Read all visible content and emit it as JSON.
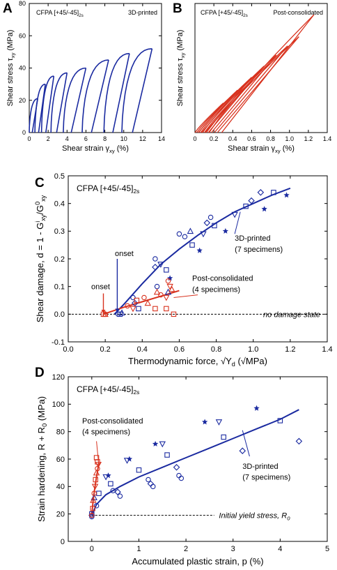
{
  "colors": {
    "blue": "#1a2aa0",
    "red": "#d8321e",
    "axis": "#000000"
  },
  "chart_data": [
    {
      "panel": "A",
      "type": "line",
      "annotation_main": "CFPA [+45/-45]",
      "annotation_sub": "2s",
      "corner_label": "3D-printed",
      "xlabel": "Shear strain γ",
      "xlabel_sub": "xy",
      "xlabel_unit": "(%)",
      "ylabel": "Shear stress τ",
      "ylabel_sub": "xy",
      "ylabel_unit": "(MPa)",
      "xlim": [
        0,
        14
      ],
      "ylim": [
        0,
        80
      ],
      "xticks": [
        0,
        2,
        4,
        6,
        8,
        10,
        12,
        14
      ],
      "yticks": [
        0,
        20,
        40,
        60,
        80
      ],
      "series_color": "blue",
      "cycles": [
        {
          "origin": 0.0,
          "peak": [
            0.9,
            21
          ]
        },
        {
          "origin": 0.6,
          "peak": [
            1.7,
            30
          ]
        },
        {
          "origin": 1.3,
          "peak": [
            2.6,
            35
          ]
        },
        {
          "origin": 2.3,
          "peak": [
            4.0,
            37
          ]
        },
        {
          "origin": 3.6,
          "peak": [
            6.0,
            40
          ]
        },
        {
          "origin": 5.6,
          "peak": [
            8.4,
            45
          ]
        },
        {
          "origin": 7.9,
          "peak": [
            10.6,
            49
          ]
        },
        {
          "origin": 9.8,
          "peak": [
            13.0,
            52
          ]
        }
      ]
    },
    {
      "panel": "B",
      "type": "line",
      "annotation_main": "CFPA [+45/-45]",
      "annotation_sub": "2s",
      "corner_label": "Post-consolidated",
      "xlabel": "Shear strain γ",
      "xlabel_sub": "xy",
      "xlabel_unit": "(%)",
      "ylabel": "Shear stress τ",
      "ylabel_sub": "xy",
      "ylabel_unit": "(MPa)",
      "xlim": [
        0,
        1.4
      ],
      "ylim": [
        0,
        70
      ],
      "xticks": [
        0,
        0.2,
        0.4,
        0.6,
        0.8,
        1.0,
        1.2,
        1.4
      ],
      "xtick_labels": [
        "0",
        "0.2",
        "0.4",
        "0.6",
        "0.8",
        "1.0",
        "1.2",
        "1.4"
      ],
      "yticks": [],
      "series_color": "red",
      "cycles": [
        {
          "origin": 0.0,
          "peak": [
            0.3,
            16
          ]
        },
        {
          "origin": 0.02,
          "peak": [
            0.45,
            23
          ]
        },
        {
          "origin": 0.04,
          "peak": [
            0.6,
            30
          ]
        },
        {
          "origin": 0.06,
          "peak": [
            0.73,
            36
          ]
        },
        {
          "origin": 0.08,
          "peak": [
            0.86,
            42
          ]
        },
        {
          "origin": 0.1,
          "peak": [
            0.98,
            47
          ]
        },
        {
          "origin": 0.12,
          "peak": [
            1.1,
            52
          ]
        },
        {
          "origin": 0.15,
          "peak": [
            1.26,
            64
          ]
        }
      ]
    },
    {
      "panel": "C",
      "type": "scatter",
      "annotation_main": "CFPA [+45/-45]",
      "annotation_sub": "2s",
      "xlabel": "Thermodynamic force, √Y",
      "xlabel_sub": "d",
      "xlabel_unit": "(√MPa)",
      "ylabel": "Shear damage, d = 1 - G",
      "ylabel_sup": "i",
      "ylabel_sub": "xy",
      "ylabel_mid": "/G",
      "ylabel_sup2": "0",
      "ylabel_sub2": "xy",
      "xlim": [
        0,
        1.4
      ],
      "ylim": [
        -0.1,
        0.5
      ],
      "xticks": [
        0,
        0.2,
        0.4,
        0.6,
        0.8,
        1.0,
        1.2,
        1.4
      ],
      "xtick_labels": [
        "0.0",
        "0.2",
        "0.4",
        "0.6",
        "0.8",
        "1.0",
        "1.2",
        "1.4"
      ],
      "yticks": [
        -0.1,
        0.0,
        0.1,
        0.2,
        0.3,
        0.4,
        0.5
      ],
      "ytick_labels": [
        "-0.1",
        "0.0",
        "0.1",
        "0.2",
        "0.3",
        "0.4",
        "0.5"
      ],
      "baseline_label": "no damage state",
      "onset_label": "onset",
      "onset_red_x": 0.19,
      "onset_blue_x": 0.265,
      "group_3d_label": "3D-printed",
      "group_3d_count": "(7 specimens)",
      "group_pc_label": "Post-consolidated",
      "group_pc_count": "(4 specimens)",
      "blue_fit": [
        [
          0.25,
          0.0
        ],
        [
          0.3,
          0.035
        ],
        [
          0.4,
          0.11
        ],
        [
          0.5,
          0.18
        ],
        [
          0.6,
          0.235
        ],
        [
          0.7,
          0.285
        ],
        [
          0.8,
          0.33
        ],
        [
          0.9,
          0.37
        ],
        [
          1.0,
          0.4
        ],
        [
          1.1,
          0.43
        ],
        [
          1.2,
          0.455
        ]
      ],
      "red_fit": [
        [
          0.19,
          0.0
        ],
        [
          0.3,
          0.025
        ],
        [
          0.4,
          0.045
        ],
        [
          0.5,
          0.065
        ],
        [
          0.6,
          0.085
        ]
      ],
      "blue_points": [
        {
          "m": "circle",
          "x": 0.27,
          "y": 0.0
        },
        {
          "m": "square",
          "x": 0.28,
          "y": 0.0
        },
        {
          "m": "tri",
          "x": 0.29,
          "y": 0.005
        },
        {
          "m": "circle",
          "x": 0.35,
          "y": 0.06
        },
        {
          "m": "square",
          "x": 0.38,
          "y": 0.02
        },
        {
          "m": "diamond",
          "x": 0.36,
          "y": 0.04
        },
        {
          "m": "circle",
          "x": 0.47,
          "y": 0.2
        },
        {
          "m": "tridown",
          "x": 0.5,
          "y": 0.18
        },
        {
          "m": "diamond",
          "x": 0.47,
          "y": 0.17
        },
        {
          "m": "square",
          "x": 0.53,
          "y": 0.16
        },
        {
          "m": "star",
          "x": 0.55,
          "y": 0.13
        },
        {
          "m": "circle",
          "x": 0.6,
          "y": 0.29
        },
        {
          "m": "tri",
          "x": 0.66,
          "y": 0.3
        },
        {
          "m": "circle",
          "x": 0.63,
          "y": 0.28
        },
        {
          "m": "square",
          "x": 0.67,
          "y": 0.25
        },
        {
          "m": "tridown",
          "x": 0.73,
          "y": 0.29
        },
        {
          "m": "diamond",
          "x": 0.75,
          "y": 0.33
        },
        {
          "m": "square",
          "x": 0.79,
          "y": 0.32
        },
        {
          "m": "star",
          "x": 0.71,
          "y": 0.23
        },
        {
          "m": "circle",
          "x": 0.77,
          "y": 0.35
        },
        {
          "m": "star",
          "x": 0.85,
          "y": 0.3
        },
        {
          "m": "tridown",
          "x": 0.9,
          "y": 0.36
        },
        {
          "m": "square",
          "x": 0.96,
          "y": 0.39
        },
        {
          "m": "diamond",
          "x": 0.99,
          "y": 0.41
        },
        {
          "m": "diamond",
          "x": 1.04,
          "y": 0.44
        },
        {
          "m": "star",
          "x": 1.06,
          "y": 0.38
        },
        {
          "m": "square",
          "x": 1.11,
          "y": 0.44
        },
        {
          "m": "star",
          "x": 1.18,
          "y": 0.43
        },
        {
          "m": "circle",
          "x": 0.48,
          "y": 0.1
        },
        {
          "m": "tri",
          "x": 0.54,
          "y": 0.08
        }
      ],
      "red_points": [
        {
          "m": "square",
          "x": 0.19,
          "y": 0.0
        },
        {
          "m": "circle",
          "x": 0.2,
          "y": 0.0
        },
        {
          "m": "tri",
          "x": 0.2,
          "y": 0.0
        },
        {
          "m": "circle",
          "x": 0.32,
          "y": 0.03
        },
        {
          "m": "tridown",
          "x": 0.35,
          "y": 0.02
        },
        {
          "m": "square",
          "x": 0.37,
          "y": 0.05
        },
        {
          "m": "circle",
          "x": 0.41,
          "y": 0.06
        },
        {
          "m": "tri",
          "x": 0.43,
          "y": 0.04
        },
        {
          "m": "tri",
          "x": 0.48,
          "y": 0.08
        },
        {
          "m": "circle",
          "x": 0.5,
          "y": 0.07
        },
        {
          "m": "square",
          "x": 0.47,
          "y": 0.02
        },
        {
          "m": "tridown",
          "x": 0.53,
          "y": 0.06
        },
        {
          "m": "circle",
          "x": 0.54,
          "y": 0.12
        },
        {
          "m": "tridown",
          "x": 0.55,
          "y": 0.1
        },
        {
          "m": "tri",
          "x": 0.56,
          "y": 0.09
        },
        {
          "m": "square",
          "x": 0.57,
          "y": 0.0
        },
        {
          "m": "square",
          "x": 0.53,
          "y": 0.02
        }
      ]
    },
    {
      "panel": "D",
      "type": "scatter",
      "annotation_main": "CFPA [+45/-45]",
      "annotation_sub": "2s",
      "xlabel": "Accumulated plastic strain, p (%)",
      "ylabel": "Strain hardening, R + R",
      "ylabel_sub": "0",
      "ylabel_unit": "(MPa)",
      "xlim": [
        -0.5,
        5
      ],
      "ylim": [
        0,
        120
      ],
      "xticks": [
        0,
        1,
        2,
        3,
        4,
        5
      ],
      "yticks": [
        0,
        20,
        40,
        60,
        80,
        100,
        120
      ],
      "baseline_y": 19,
      "baseline_label": "Initial yield stress, R",
      "baseline_label_sub": "0",
      "group_3d_label": "3D-printed",
      "group_3d_count": "(7 specimens)",
      "group_pc_label": "Post-consolidated",
      "group_pc_count": "(4 specimens)",
      "blue_fit": [
        [
          0.0,
          19
        ],
        [
          0.1,
          27
        ],
        [
          0.3,
          34
        ],
        [
          0.6,
          40
        ],
        [
          1.0,
          47
        ],
        [
          1.5,
          54
        ],
        [
          2.0,
          61
        ],
        [
          2.5,
          68
        ],
        [
          3.0,
          75
        ],
        [
          3.5,
          82
        ],
        [
          4.0,
          89
        ],
        [
          4.4,
          96
        ]
      ],
      "red_fit": [
        [
          0.0,
          19
        ],
        [
          0.03,
          30
        ],
        [
          0.06,
          38
        ],
        [
          0.1,
          47
        ],
        [
          0.15,
          57
        ]
      ],
      "blue_points": [
        {
          "m": "circle",
          "x": 0.0,
          "y": 18
        },
        {
          "m": "square",
          "x": 0.0,
          "y": 20
        },
        {
          "m": "diamond",
          "x": 0.0,
          "y": 19
        },
        {
          "m": "circle",
          "x": 0.1,
          "y": 26
        },
        {
          "m": "tri",
          "x": 0.05,
          "y": 32
        },
        {
          "m": "square",
          "x": 0.15,
          "y": 35
        },
        {
          "m": "tridown",
          "x": 0.3,
          "y": 47
        },
        {
          "m": "square",
          "x": 0.4,
          "y": 42
        },
        {
          "m": "star",
          "x": 0.35,
          "y": 48
        },
        {
          "m": "circle",
          "x": 0.45,
          "y": 37
        },
        {
          "m": "diamond",
          "x": 0.55,
          "y": 36
        },
        {
          "m": "circle",
          "x": 0.6,
          "y": 33
        },
        {
          "m": "tridown",
          "x": 0.75,
          "y": 59
        },
        {
          "m": "star",
          "x": 0.8,
          "y": 60
        },
        {
          "m": "square",
          "x": 1.0,
          "y": 52
        },
        {
          "m": "circle",
          "x": 1.2,
          "y": 45
        },
        {
          "m": "diamond",
          "x": 1.25,
          "y": 42
        },
        {
          "m": "circle",
          "x": 1.3,
          "y": 40
        },
        {
          "m": "star",
          "x": 1.35,
          "y": 71
        },
        {
          "m": "tridown",
          "x": 1.5,
          "y": 71
        },
        {
          "m": "square",
          "x": 1.6,
          "y": 63
        },
        {
          "m": "diamond",
          "x": 1.8,
          "y": 54
        },
        {
          "m": "circle",
          "x": 1.85,
          "y": 48
        },
        {
          "m": "circle",
          "x": 1.9,
          "y": 46
        },
        {
          "m": "star",
          "x": 2.4,
          "y": 87
        },
        {
          "m": "tridown",
          "x": 2.7,
          "y": 87
        },
        {
          "m": "square",
          "x": 2.8,
          "y": 76
        },
        {
          "m": "diamond",
          "x": 3.2,
          "y": 66
        },
        {
          "m": "star",
          "x": 3.5,
          "y": 97
        },
        {
          "m": "square",
          "x": 4.0,
          "y": 88
        },
        {
          "m": "diamond",
          "x": 4.4,
          "y": 73
        }
      ],
      "red_points": [
        {
          "m": "circle",
          "x": 0.0,
          "y": 19
        },
        {
          "m": "square",
          "x": 0.02,
          "y": 24
        },
        {
          "m": "tri",
          "x": 0.03,
          "y": 30
        },
        {
          "m": "circle",
          "x": 0.05,
          "y": 35
        },
        {
          "m": "tridown",
          "x": 0.07,
          "y": 40
        },
        {
          "m": "square",
          "x": 0.08,
          "y": 45
        },
        {
          "m": "tri",
          "x": 0.1,
          "y": 50
        },
        {
          "m": "circle",
          "x": 0.12,
          "y": 53
        },
        {
          "m": "tridown",
          "x": 0.14,
          "y": 56
        },
        {
          "m": "square",
          "x": 0.12,
          "y": 58
        },
        {
          "m": "square",
          "x": 0.1,
          "y": 61
        }
      ]
    }
  ]
}
